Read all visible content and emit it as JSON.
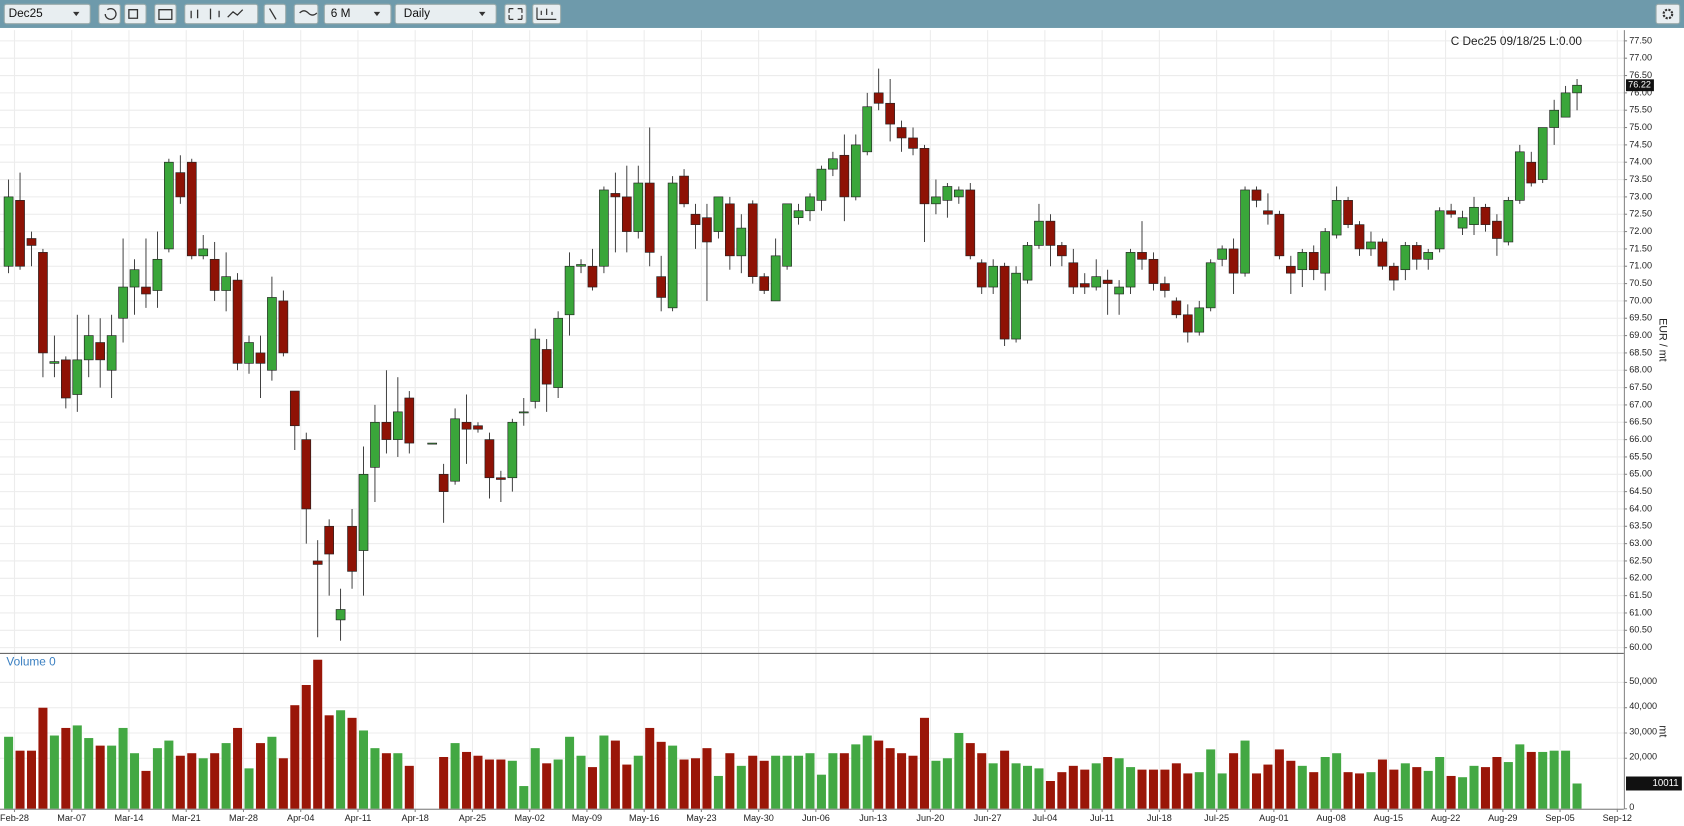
{
  "toolbar": {
    "symbol": "Dec25",
    "period": "6 M",
    "interval": "Daily"
  },
  "chart_data": [
    {
      "type": "candlestick",
      "annotation": "C Dec25 09/18/25 L:0.00",
      "y_label": "EUR / mt",
      "up_color": "#3aa63a",
      "down_color": "#8e1205",
      "grid": true,
      "ylim": [
        59.85,
        77.81
      ],
      "yticks": [
        {
          "value": 60,
          "label": "60.00"
        },
        {
          "value": 60.5,
          "label": "60.50"
        },
        {
          "value": 61,
          "label": "61.00"
        },
        {
          "value": 61.5,
          "label": "61.50"
        },
        {
          "value": 62,
          "label": "62.00"
        },
        {
          "value": 62.5,
          "label": "62.50"
        },
        {
          "value": 63,
          "label": "63.00"
        },
        {
          "value": 63.5,
          "label": "63.50"
        },
        {
          "value": 64,
          "label": "64.00"
        },
        {
          "value": 64.5,
          "label": "64.50"
        },
        {
          "value": 65,
          "label": "65.00"
        },
        {
          "value": 65.5,
          "label": "65.50"
        },
        {
          "value": 66,
          "label": "66.00"
        },
        {
          "value": 66.5,
          "label": "66.50"
        },
        {
          "value": 67,
          "label": "67.00"
        },
        {
          "value": 67.5,
          "label": "67.50"
        },
        {
          "value": 68,
          "label": "68.00"
        },
        {
          "value": 68.5,
          "label": "68.50"
        },
        {
          "value": 69,
          "label": "69.00"
        },
        {
          "value": 69.5,
          "label": "69.50"
        },
        {
          "value": 70,
          "label": "70.00"
        },
        {
          "value": 70.5,
          "label": "70.50"
        },
        {
          "value": 71,
          "label": "71.00"
        },
        {
          "value": 71.5,
          "label": "71.50"
        },
        {
          "value": 72,
          "label": "72.00"
        },
        {
          "value": 72.5,
          "label": "72.50"
        },
        {
          "value": 73,
          "label": "73.00"
        },
        {
          "value": 73.5,
          "label": "73.50"
        },
        {
          "value": 74,
          "label": "74.00"
        },
        {
          "value": 74.5,
          "label": "74.50"
        },
        {
          "value": 75,
          "label": "75.00"
        },
        {
          "value": 75.5,
          "label": "75.50"
        },
        {
          "value": 76,
          "label": "76.00"
        },
        {
          "value": 76.5,
          "label": "76.50"
        },
        {
          "value": 77,
          "label": "77.00"
        },
        {
          "value": 77.5,
          "label": "77.50"
        }
      ],
      "categories": [
        "Feb-28",
        null,
        null,
        null,
        null,
        "Mar-07",
        null,
        null,
        null,
        null,
        "Mar-14",
        null,
        null,
        null,
        null,
        "Mar-21",
        null,
        null,
        null,
        null,
        "Mar-28",
        null,
        null,
        null,
        null,
        "Apr-04",
        null,
        null,
        null,
        null,
        "Apr-11",
        null,
        null,
        null,
        null,
        "Apr-18",
        null,
        null,
        null,
        null,
        "Apr-25",
        null,
        null,
        null,
        null,
        "May-02",
        null,
        null,
        null,
        null,
        "May-09",
        null,
        null,
        null,
        null,
        "May-16",
        null,
        null,
        null,
        null,
        "May-23",
        null,
        null,
        null,
        null,
        "May-30",
        null,
        null,
        null,
        null,
        "Jun-06",
        null,
        null,
        null,
        null,
        "Jun-13",
        null,
        null,
        null,
        null,
        "Jun-20",
        null,
        null,
        null,
        null,
        "Jun-27",
        null,
        null,
        null,
        null,
        "Jul-04",
        null,
        null,
        null,
        null,
        "Jul-11",
        null,
        null,
        null,
        null,
        "Jul-18",
        null,
        null,
        null,
        null,
        "Jul-25",
        null,
        null,
        null,
        null,
        "Aug-01",
        null,
        null,
        null,
        null,
        "Aug-08",
        null,
        null,
        null,
        null,
        "Aug-15",
        null,
        null,
        null,
        null,
        "Aug-22",
        null,
        null,
        null,
        null,
        "Aug-29",
        null,
        null,
        null,
        null,
        "Sep-05",
        null,
        null,
        null,
        null,
        "Sep-12"
      ],
      "open": [
        71.0,
        72.9,
        71.8,
        71.4,
        68.2,
        68.3,
        67.3,
        68.3,
        68.8,
        68.0,
        69.5,
        70.4,
        70.4,
        70.3,
        71.5,
        73.7,
        74.0,
        71.3,
        71.2,
        70.3,
        70.6,
        68.2,
        68.5,
        68.0,
        70.0,
        67.4,
        66.0,
        62.5,
        63.5,
        60.8,
        63.5,
        62.8,
        65.2,
        66.5,
        66.0,
        67.2,
        null,
        65.9,
        65.0,
        64.8,
        66.5,
        66.4,
        66.0,
        64.9,
        64.9,
        66.8,
        67.1,
        68.6,
        67.5,
        69.6,
        71.0,
        71.0,
        71.0,
        73.1,
        73.0,
        72.0,
        73.4,
        70.7,
        69.8,
        73.6,
        72.5,
        72.4,
        72.0,
        72.8,
        71.3,
        72.8,
        70.7,
        70.0,
        71.0,
        72.4,
        72.6,
        72.9,
        73.8,
        74.2,
        73.0,
        74.3,
        76.0,
        75.7,
        75.0,
        74.7,
        74.4,
        72.8,
        72.9,
        73.0,
        73.2,
        71.1,
        70.4,
        71.0,
        68.9,
        70.6,
        71.6,
        72.3,
        71.6,
        71.1,
        70.5,
        70.4,
        70.6,
        70.2,
        70.4,
        71.4,
        71.2,
        70.5,
        70.0,
        69.6,
        69.1,
        69.8,
        71.2,
        71.5,
        70.8,
        73.2,
        72.6,
        72.5,
        71.0,
        70.9,
        71.4,
        70.8,
        71.9,
        72.9,
        72.2,
        71.5,
        71.7,
        71.0,
        70.9,
        71.6,
        71.2,
        71.5,
        72.6,
        72.1,
        72.2,
        72.7,
        72.3,
        71.7,
        72.9,
        74.0,
        73.5,
        75.0,
        75.3,
        76.0,
        null,
        null,
        null
      ],
      "high": [
        73.5,
        73.7,
        72.0,
        71.5,
        69.0,
        68.4,
        69.6,
        69.6,
        69.5,
        69.6,
        71.8,
        71.2,
        71.8,
        72.0,
        74.1,
        74.2,
        74.1,
        71.9,
        71.7,
        71.4,
        70.8,
        69.0,
        69.0,
        70.7,
        70.3,
        67.4,
        66.2,
        63.1,
        63.7,
        61.7,
        64.0,
        65.8,
        67.0,
        68.0,
        67.8,
        67.4,
        null,
        65.9,
        65.3,
        66.9,
        67.3,
        66.5,
        66.2,
        65.1,
        66.6,
        67.2,
        69.2,
        68.9,
        69.7,
        71.4,
        71.2,
        71.5,
        73.3,
        73.7,
        73.9,
        73.9,
        75.0,
        71.3,
        73.6,
        73.8,
        72.8,
        72.8,
        73.0,
        73.0,
        72.5,
        72.9,
        70.8,
        71.8,
        72.8,
        72.8,
        73.1,
        73.9,
        74.3,
        74.8,
        74.8,
        76.0,
        76.7,
        76.4,
        75.2,
        75.0,
        74.5,
        73.5,
        73.4,
        73.3,
        73.4,
        71.2,
        71.2,
        71.1,
        71.0,
        71.7,
        72.8,
        72.5,
        71.7,
        71.5,
        70.8,
        71.2,
        70.9,
        70.6,
        71.5,
        72.3,
        71.4,
        70.7,
        70.1,
        69.9,
        70.0,
        71.2,
        71.6,
        71.8,
        73.3,
        73.3,
        73.1,
        72.6,
        71.3,
        71.5,
        71.6,
        72.1,
        73.3,
        73.0,
        72.3,
        72.0,
        71.8,
        71.1,
        71.7,
        71.7,
        71.5,
        72.7,
        72.8,
        72.6,
        73.0,
        72.8,
        72.5,
        73.0,
        74.5,
        74.3,
        75.0,
        75.8,
        76.2,
        76.4,
        null,
        null,
        null
      ],
      "low": [
        70.8,
        70.9,
        71.0,
        67.8,
        67.8,
        66.9,
        66.8,
        67.8,
        67.5,
        67.2,
        68.8,
        69.6,
        69.8,
        69.8,
        71.4,
        72.8,
        71.2,
        71.2,
        70.0,
        69.7,
        68.0,
        67.9,
        67.2,
        67.7,
        68.4,
        65.7,
        63.0,
        60.3,
        61.5,
        60.2,
        61.7,
        61.5,
        64.2,
        65.6,
        65.5,
        65.6,
        null,
        65.9,
        63.6,
        64.7,
        65.3,
        66.2,
        64.3,
        64.2,
        64.5,
        66.4,
        66.9,
        66.8,
        67.2,
        69.0,
        70.8,
        70.3,
        70.8,
        71.4,
        71.4,
        71.8,
        71.0,
        69.7,
        69.7,
        72.7,
        71.5,
        70.0,
        71.8,
        70.9,
        70.8,
        70.5,
        70.2,
        70.0,
        70.9,
        72.2,
        72.3,
        72.6,
        73.6,
        72.3,
        72.9,
        74.2,
        75.5,
        74.6,
        74.3,
        74.2,
        71.7,
        72.5,
        72.4,
        72.8,
        71.2,
        70.2,
        70.2,
        68.7,
        68.8,
        70.5,
        71.5,
        71.0,
        71.0,
        70.2,
        70.2,
        70.3,
        69.6,
        69.6,
        70.2,
        70.9,
        70.3,
        70.1,
        69.5,
        68.8,
        69.0,
        69.7,
        71.0,
        70.2,
        70.7,
        72.7,
        72.2,
        71.2,
        70.2,
        70.4,
        70.6,
        70.3,
        71.8,
        72.1,
        71.3,
        71.3,
        70.9,
        70.3,
        70.6,
        70.9,
        70.9,
        71.4,
        72.4,
        71.9,
        71.9,
        72.0,
        71.3,
        71.6,
        72.8,
        73.3,
        73.4,
        74.5,
        75.3,
        75.5,
        null,
        null,
        null
      ],
      "close": [
        73.0,
        71.0,
        71.6,
        68.5,
        68.25,
        67.2,
        68.3,
        69.0,
        68.3,
        69.0,
        70.4,
        70.9,
        70.2,
        71.2,
        74.0,
        73.0,
        71.3,
        71.5,
        70.3,
        70.7,
        68.2,
        68.8,
        68.2,
        70.1,
        68.5,
        66.4,
        64.0,
        62.4,
        62.7,
        61.1,
        62.2,
        65.0,
        66.5,
        66.0,
        66.8,
        65.9,
        null,
        65.9,
        64.5,
        66.6,
        66.3,
        66.3,
        64.9,
        64.85,
        66.5,
        66.8,
        68.9,
        67.6,
        69.5,
        71.0,
        71.05,
        70.4,
        73.2,
        73.0,
        72.0,
        73.4,
        71.4,
        70.1,
        73.4,
        72.8,
        72.2,
        71.7,
        73.0,
        71.3,
        72.1,
        70.7,
        70.3,
        71.3,
        72.8,
        72.6,
        73.0,
        73.8,
        74.1,
        73.0,
        74.5,
        75.6,
        75.7,
        75.1,
        74.7,
        74.4,
        72.8,
        73.0,
        73.3,
        73.2,
        71.3,
        70.4,
        71.0,
        68.9,
        70.8,
        71.6,
        72.3,
        71.6,
        71.3,
        70.4,
        70.4,
        70.7,
        70.5,
        70.4,
        71.4,
        71.2,
        70.5,
        70.3,
        69.6,
        69.1,
        69.8,
        71.1,
        71.5,
        70.8,
        73.2,
        72.9,
        72.5,
        71.3,
        70.8,
        71.4,
        70.9,
        72.0,
        72.9,
        72.2,
        71.5,
        71.7,
        71.0,
        70.6,
        71.6,
        71.2,
        71.4,
        72.6,
        72.5,
        72.4,
        72.7,
        72.2,
        71.8,
        72.9,
        74.3,
        73.4,
        75.0,
        75.5,
        76.0,
        76.22,
        null,
        null,
        null
      ]
    },
    {
      "type": "bar",
      "title": "Volume 0",
      "y_label": "mt",
      "up_color": "#43a843",
      "down_color": "#9a1608",
      "ylim": [
        0,
        61300
      ],
      "yticks": [
        0,
        {
          "value": 20000,
          "label": "20,000"
        },
        {
          "value": 30000,
          "label": "30,000"
        },
        {
          "value": 40000,
          "label": "40,000"
        },
        {
          "value": 50000,
          "label": "50,000"
        }
      ],
      "values": [
        28500,
        23000,
        23000,
        40000,
        29000,
        32000,
        33000,
        28000,
        25000,
        25000,
        32000,
        22000,
        15000,
        24000,
        27000,
        21000,
        22000,
        20000,
        22000,
        26000,
        32000,
        16000,
        26000,
        28500,
        20000,
        41000,
        49000,
        59000,
        37000,
        39000,
        36000,
        31000,
        24000,
        22000,
        22000,
        17000,
        null,
        null,
        20500,
        26000,
        22500,
        21000,
        19500,
        19500,
        19000,
        9000,
        24000,
        18000,
        19500,
        28500,
        21000,
        16500,
        29000,
        27000,
        17500,
        21000,
        32000,
        26500,
        25000,
        19500,
        20000,
        24000,
        13000,
        22000,
        17000,
        21000,
        19000,
        21000,
        21000,
        21000,
        22000,
        13500,
        22000,
        22000,
        25500,
        29000,
        27000,
        24000,
        22000,
        21000,
        36000,
        19000,
        20000,
        30000,
        26000,
        22000,
        18000,
        23000,
        18000,
        17000,
        16000,
        11000,
        14500,
        17000,
        15500,
        18000,
        20500,
        20000,
        16500,
        15500,
        15500,
        15500,
        18000,
        14000,
        14500,
        23500,
        14000,
        22000,
        27000,
        14000,
        17500,
        23500,
        19000,
        17000,
        14500,
        20500,
        22000,
        14500,
        14000,
        14500,
        19500,
        15500,
        18000,
        16500,
        15000,
        20500,
        13000,
        12500,
        17000,
        16500,
        20500,
        18500,
        25500,
        22500,
        22500,
        23000,
        23000,
        10011,
        null,
        null,
        null
      ]
    }
  ]
}
